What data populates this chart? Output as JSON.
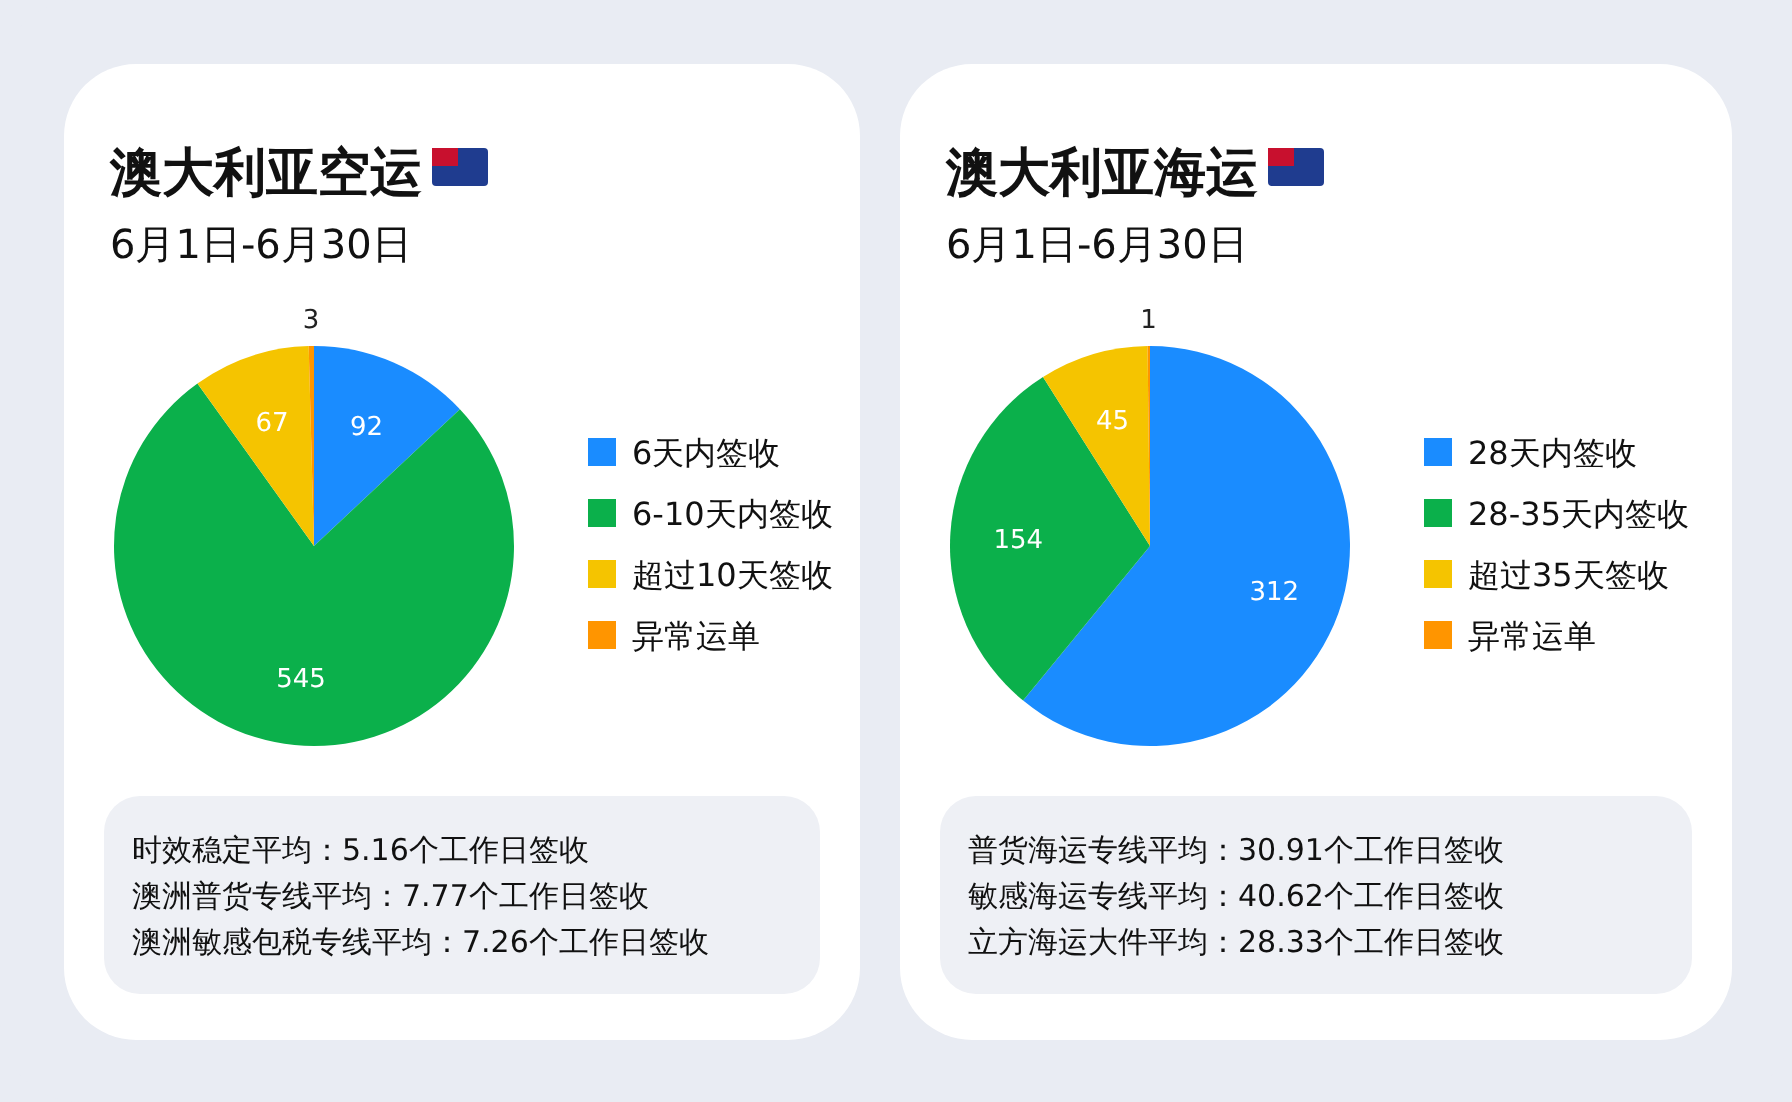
{
  "chart_data": [
    {
      "type": "pie",
      "title": "澳大利亚空运",
      "subtitle": "6月1日-6月30日",
      "categories": [
        "6天内签收",
        "6-10天内签收",
        "超过10天签收",
        "异常运单"
      ],
      "values": [
        92,
        545,
        67,
        3
      ],
      "colors": [
        "#1a8cff",
        "#0bb04b",
        "#f5c400",
        "#ff9500"
      ],
      "data_labels": true,
      "legend": "right",
      "annotations": [
        "时效稳定平均：5.16个工作日签收",
        "澳洲普货专线平均：7.77个工作日签收",
        "澳洲敏感包税专线平均：7.26个工作日签收"
      ]
    },
    {
      "type": "pie",
      "title": "澳大利亚海运",
      "subtitle": "6月1日-6月30日",
      "categories": [
        "28天内签收",
        "28-35天内签收",
        "超过35天签收",
        "异常运单"
      ],
      "values": [
        312,
        154,
        45,
        1
      ],
      "colors": [
        "#1a8cff",
        "#0bb04b",
        "#f5c400",
        "#ff9500"
      ],
      "data_labels": true,
      "legend": "right",
      "annotations": [
        "普货海运专线平均：30.91个工作日签收",
        "敏感海运专线平均：40.62个工作日签收",
        "立方海运大件平均：28.33个工作日签收"
      ]
    }
  ]
}
